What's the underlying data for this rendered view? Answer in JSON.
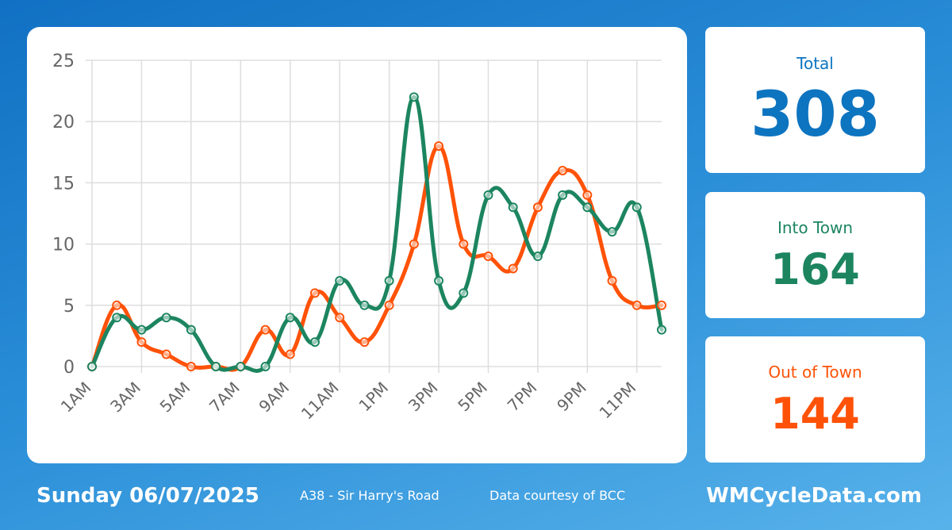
{
  "colors": {
    "total": "#0d74c0",
    "into_town": "#1c8560",
    "out_of_town": "#ff5208",
    "grid": "#dddddd",
    "tick_text": "#666666"
  },
  "stats": {
    "total": {
      "label": "Total",
      "value": "308"
    },
    "into_town": {
      "label": "Into Town",
      "value": "164"
    },
    "out_of_town": {
      "label": "Out of Town",
      "value": "144"
    }
  },
  "footer": {
    "date": "Sunday 06/07/2025",
    "location": "A38 - Sir Harry's Road",
    "credit": "Data courtesy of BCC",
    "brand": "WMCycleData.com"
  },
  "chart_data": {
    "type": "line",
    "title": "",
    "xlabel": "",
    "ylabel": "",
    "ylim": [
      0,
      25
    ],
    "yticks": [
      0,
      5,
      10,
      15,
      20,
      25
    ],
    "x": [
      "1AM",
      "2AM",
      "3AM",
      "4AM",
      "5AM",
      "6AM",
      "7AM",
      "8AM",
      "9AM",
      "10AM",
      "11AM",
      "12PM",
      "1PM",
      "2PM",
      "3PM",
      "4PM",
      "5PM",
      "6PM",
      "7PM",
      "8PM",
      "9PM",
      "10PM",
      "11PM",
      "12AM"
    ],
    "xtick_labels": [
      "1AM",
      "3AM",
      "5AM",
      "7AM",
      "9AM",
      "11AM",
      "1PM",
      "3PM",
      "5PM",
      "7PM",
      "9PM",
      "11PM"
    ],
    "grid": true,
    "legend": "none",
    "series": [
      {
        "name": "Out of Town",
        "color": "#ff5208",
        "values": [
          0,
          5,
          2,
          1,
          0,
          0,
          0,
          3,
          1,
          6,
          4,
          2,
          5,
          10,
          18,
          10,
          9,
          8,
          13,
          16,
          14,
          7,
          5,
          5
        ]
      },
      {
        "name": "Into Town",
        "color": "#1c8560",
        "values": [
          0,
          4,
          3,
          4,
          3,
          0,
          0,
          0,
          4,
          2,
          7,
          5,
          7,
          22,
          7,
          6,
          14,
          13,
          9,
          14,
          13,
          11,
          13,
          3
        ]
      }
    ]
  }
}
